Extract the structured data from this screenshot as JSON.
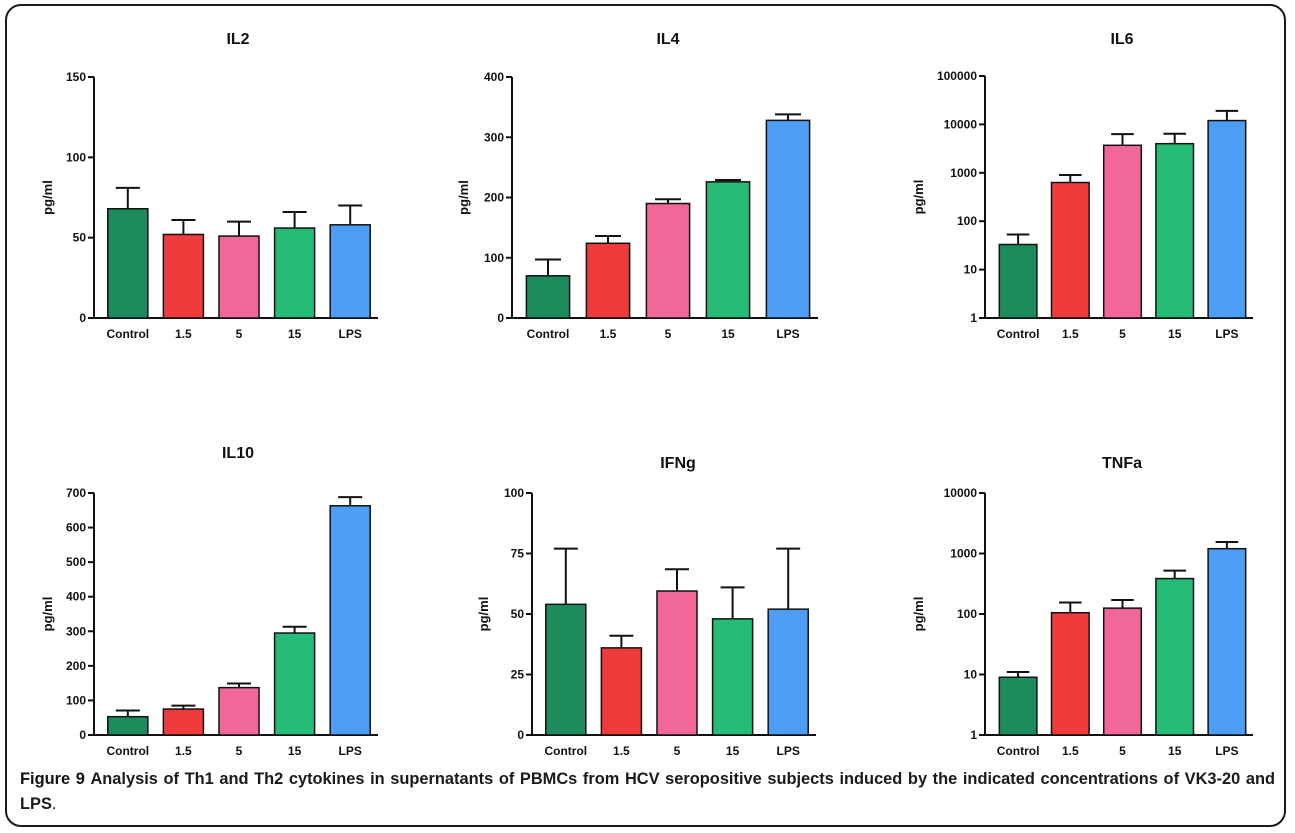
{
  "caption": {
    "label": "Figure 9",
    "text": "Analysis of Th1 and Th2 cytokines in supernatants of PBMCs from HCV seropositive subjects induced by the indicated concentrations of VK3-20 and LPS",
    "end": "."
  },
  "colors": {
    "Control": "#1c8c5c",
    "1.5": "#ef3b3b",
    "5": "#f2679a",
    "15": "#27bb78",
    "LPS": "#4d9df5"
  },
  "chart_data": [
    {
      "type": "bar",
      "title": "IL2",
      "ylabel": "pg/ml",
      "scale": "linear",
      "ylim": [
        0,
        150
      ],
      "yticks": [
        0,
        50,
        100,
        150
      ],
      "categories": [
        "Control",
        "1.5",
        "5",
        "15",
        "LPS"
      ],
      "values": [
        68,
        52,
        51,
        56,
        58
      ],
      "errors": [
        13,
        9,
        9,
        10,
        12
      ]
    },
    {
      "type": "bar",
      "title": "IL4",
      "ylabel": "pg/ml",
      "scale": "linear",
      "ylim": [
        0,
        400
      ],
      "yticks": [
        0,
        100,
        200,
        300,
        400
      ],
      "categories": [
        "Control",
        "1.5",
        "5",
        "15",
        "LPS"
      ],
      "values": [
        70,
        124,
        190,
        226,
        328
      ],
      "errors": [
        27,
        12,
        7,
        3,
        10
      ]
    },
    {
      "type": "bar",
      "title": "IL6",
      "ylabel": "pg/ml",
      "scale": "log",
      "ylim": [
        1,
        100000
      ],
      "yticks": [
        1,
        10,
        100,
        1000,
        10000,
        100000
      ],
      "categories": [
        "Control",
        "1.5",
        "5",
        "15",
        "LPS"
      ],
      "values": [
        33,
        630,
        3700,
        4000,
        12000
      ],
      "errors": [
        20,
        270,
        2600,
        2400,
        7000
      ]
    },
    {
      "type": "bar",
      "title": "IL10",
      "ylabel": "pg/ml",
      "scale": "linear",
      "ylim": [
        0,
        700
      ],
      "yticks": [
        0,
        100,
        200,
        300,
        400,
        500,
        600,
        700
      ],
      "categories": [
        "Control",
        "1.5",
        "5",
        "15",
        "LPS"
      ],
      "values": [
        53,
        75,
        137,
        295,
        663
      ],
      "errors": [
        18,
        10,
        12,
        18,
        25
      ]
    },
    {
      "type": "bar",
      "title": "IFNg",
      "ylabel": "pg/ml",
      "scale": "linear",
      "ylim": [
        0,
        100
      ],
      "yticks": [
        0,
        25,
        50,
        75,
        100
      ],
      "categories": [
        "Control",
        "1.5",
        "5",
        "15",
        "LPS"
      ],
      "values": [
        54,
        36,
        59.5,
        48,
        52
      ],
      "errors": [
        23,
        5,
        9,
        13,
        25
      ]
    },
    {
      "type": "bar",
      "title": "TNFa",
      "ylabel": "pg/ml",
      "scale": "log",
      "ylim": [
        1,
        10000
      ],
      "yticks": [
        1,
        10,
        100,
        1000,
        10000
      ],
      "categories": [
        "Control",
        "1.5",
        "5",
        "15",
        "LPS"
      ],
      "values": [
        9,
        105,
        125,
        385,
        1200
      ],
      "errors": [
        2,
        50,
        45,
        135,
        350
      ]
    }
  ]
}
